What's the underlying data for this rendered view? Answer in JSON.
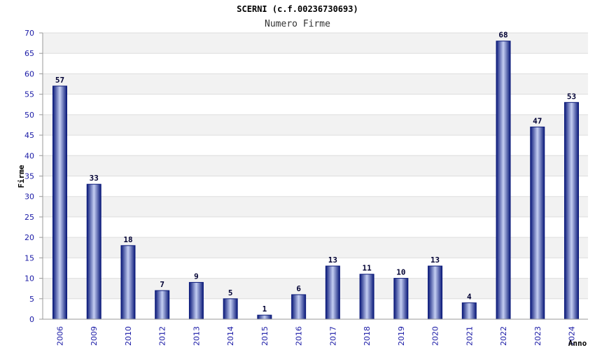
{
  "chart_data": {
    "type": "bar",
    "title": "SCERNI (c.f.00236730693)",
    "subtitle": "Numero Firme",
    "ylabel": "Firme",
    "xlabel": "Anno",
    "ylim": [
      0,
      70
    ],
    "yticks": [
      0,
      5,
      10,
      15,
      20,
      25,
      30,
      35,
      40,
      45,
      50,
      55,
      60,
      65,
      70
    ],
    "grid": true,
    "categories": [
      "2006",
      "2009",
      "2010",
      "2012",
      "2013",
      "2014",
      "2015",
      "2016",
      "2017",
      "2018",
      "2019",
      "2020",
      "2021",
      "2022",
      "2023",
      "2024"
    ],
    "values": [
      57,
      33,
      18,
      7,
      9,
      5,
      1,
      6,
      13,
      11,
      10,
      13,
      4,
      68,
      47,
      53
    ],
    "colors": {
      "bar_dark": "#0b1a7a",
      "bar_light": "#c4cef2",
      "band": "#f2f2f2",
      "tick_text": "#1a1aa6"
    }
  }
}
